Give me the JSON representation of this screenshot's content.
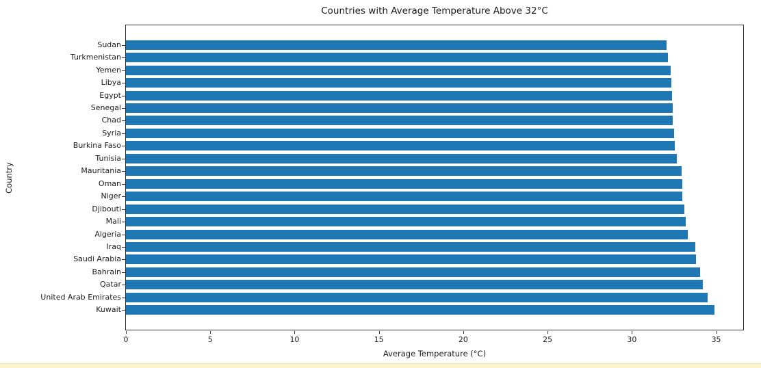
{
  "page": {
    "background": "#ffffff",
    "bottom_strip_color": "#fcf3d0",
    "bottom_strip_edge_color": "#f1dfa4"
  },
  "chart_data": {
    "type": "bar",
    "orientation": "horizontal",
    "title": "Countries with Average Temperature Above 32°C",
    "xlabel": "Average Temperature (°C)",
    "ylabel": "Country",
    "categories": [
      "Sudan",
      "Turkmenistan",
      "Yemen",
      "Libya",
      "Egypt",
      "Senegal",
      "Chad",
      "Syria",
      "Burkina Faso",
      "Tunisia",
      "Mauritania",
      "Oman",
      "Niger",
      "Djibouti",
      "Mali",
      "Algeria",
      "Iraq",
      "Saudi Arabia",
      "Bahrain",
      "Qatar",
      "United Arab Emirates",
      "Kuwait"
    ],
    "values": [
      32.05,
      32.15,
      32.3,
      32.35,
      32.4,
      32.42,
      32.44,
      32.5,
      32.55,
      32.68,
      32.95,
      33.0,
      33.0,
      33.1,
      33.2,
      33.33,
      33.77,
      33.8,
      34.04,
      34.2,
      34.5,
      34.9
    ],
    "xticks": [
      0,
      5,
      10,
      15,
      20,
      25,
      30,
      35
    ],
    "xlim": [
      0,
      36.6
    ],
    "bar_color": "#1f77b4",
    "axis_color": "#333333",
    "text_color": "#1a1a1a",
    "grid": false,
    "legend": null
  }
}
